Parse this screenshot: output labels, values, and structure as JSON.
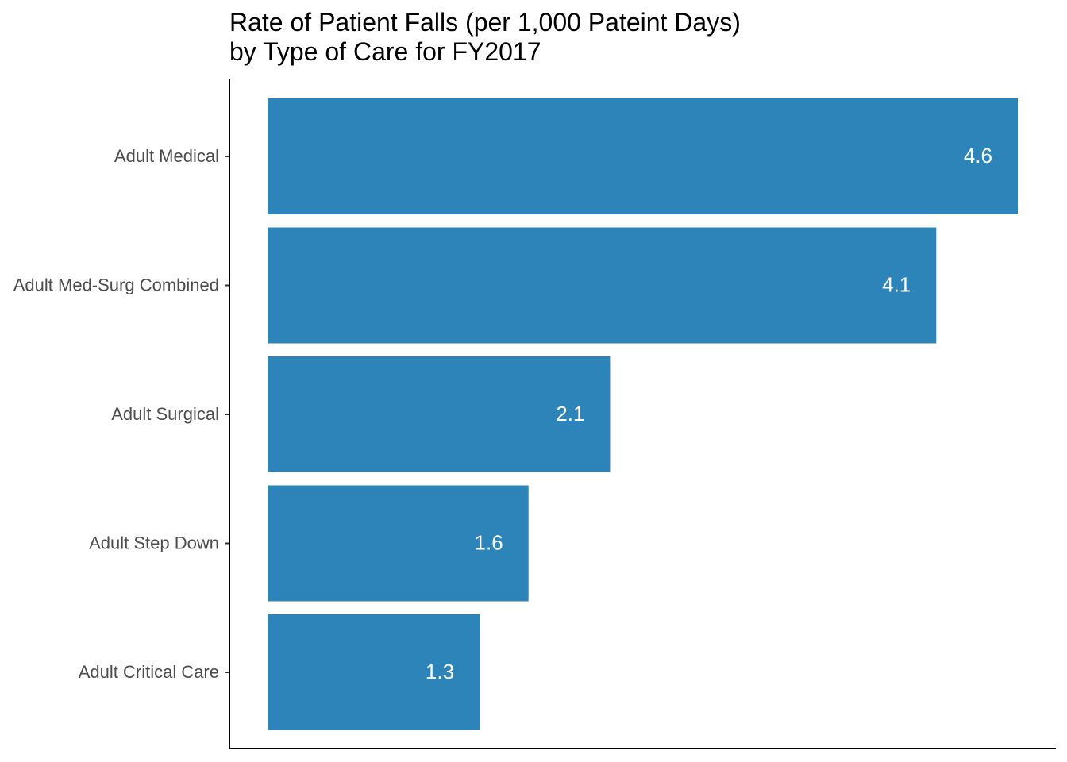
{
  "chart_data": {
    "type": "bar",
    "orientation": "horizontal",
    "title_lines": [
      "Rate of Patient Falls (per 1,000 Pateint Days)",
      "by Type of Care for FY2017"
    ],
    "xlabel": "",
    "ylabel": "",
    "categories": [
      "Adult Medical",
      "Adult Med-Surg Combined",
      "Adult Surgical",
      "Adult Step Down",
      "Adult Critical Care"
    ],
    "values": [
      4.6,
      4.1,
      2.1,
      1.6,
      1.3
    ],
    "data_labels": [
      "4.6",
      "4.1",
      "2.1",
      "1.6",
      "1.3"
    ],
    "xlim": [
      0,
      4.6
    ],
    "grid": false,
    "legend": "none",
    "bar_color": "#2c84b9",
    "label_color": "#ffffff"
  }
}
